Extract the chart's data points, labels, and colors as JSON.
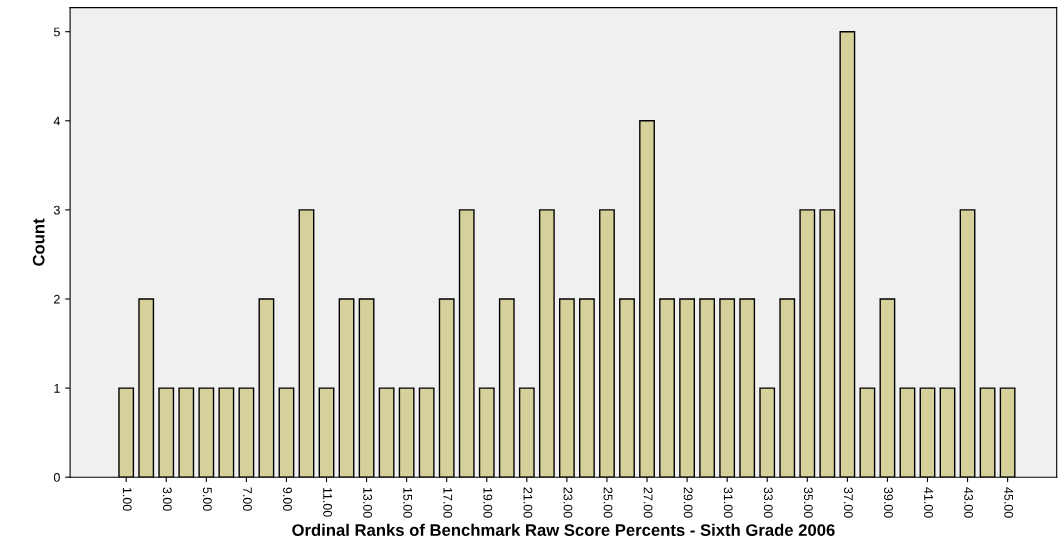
{
  "chart_data": {
    "type": "bar",
    "xlabel": "Ordinal Ranks of Benchmark Raw Score Percents - Sixth Grade 2006",
    "ylabel": "Count",
    "categories": [
      "1.00",
      null,
      "3.00",
      null,
      "5.00",
      null,
      "7.00",
      null,
      "9.00",
      null,
      "11.00",
      null,
      "13.00",
      null,
      "15.00",
      null,
      "17.00",
      null,
      "19.00",
      null,
      "21.00",
      null,
      "23.00",
      null,
      "25.00",
      null,
      "27.00",
      null,
      "29.00",
      null,
      "31.00",
      null,
      "33.00",
      null,
      "35.00",
      null,
      "37.00",
      null,
      "39.00",
      null,
      "41.00",
      null,
      "43.00",
      null,
      "45.00"
    ],
    "values": [
      1,
      2,
      1,
      1,
      1,
      1,
      1,
      2,
      1,
      3,
      1,
      2,
      2,
      1,
      1,
      1,
      2,
      3,
      1,
      2,
      1,
      3,
      2,
      2,
      3,
      2,
      4,
      2,
      2,
      2,
      2,
      2,
      1,
      2,
      3,
      3,
      5,
      1,
      2,
      1,
      1,
      1,
      3,
      1,
      1
    ],
    "color": "#d6d19a",
    "ylim": [
      0,
      5.27
    ],
    "yticks": [
      0,
      1,
      2,
      3,
      4,
      5
    ],
    "grid": false,
    "legend": false
  }
}
